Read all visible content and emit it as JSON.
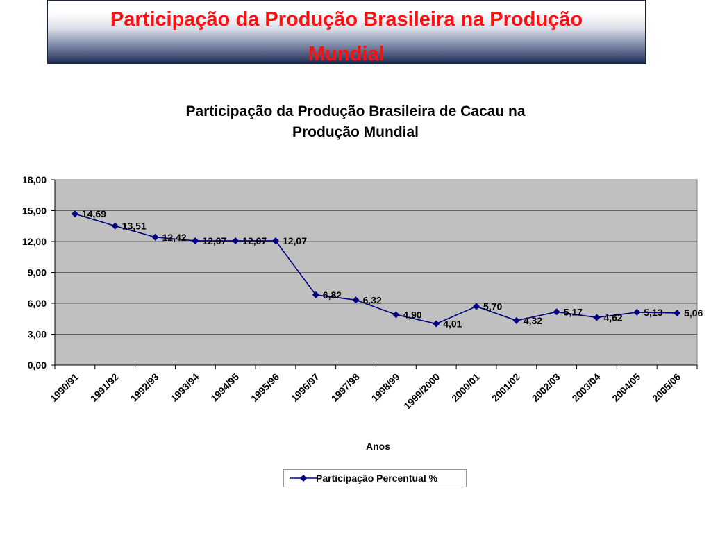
{
  "banner": {
    "title_line1": "Participação da Produção Brasileira na Produção",
    "title_line2": "Mundial"
  },
  "colors": {
    "banner_title": "#ff1010",
    "series_line": "#000080",
    "plot_background": "#c0c0c0"
  },
  "chart_data": {
    "type": "line",
    "title_line1": "Participação da Produção Brasileira de Cacau na",
    "title_line2": "Produção Mundial",
    "xlabel": "Anos",
    "ylabel": "",
    "ylim": [
      0,
      18
    ],
    "yticks": [
      "0,00",
      "3,00",
      "6,00",
      "9,00",
      "12,00",
      "15,00",
      "18,00"
    ],
    "grid": true,
    "legend_position": "bottom",
    "categories": [
      "1990/91",
      "1991/92",
      "1992/93",
      "1993/94",
      "1994/95",
      "1995/96",
      "1996/97",
      "1997/98",
      "1998/99",
      "1999/2000",
      "2000/01",
      "2001/02",
      "2002/03",
      "2003/04",
      "2004/05",
      "2005/06"
    ],
    "series": [
      {
        "name": "Participação Percentual %",
        "values": [
          14.69,
          13.51,
          12.42,
          12.07,
          12.07,
          12.07,
          6.82,
          6.32,
          4.9,
          4.01,
          5.7,
          4.32,
          5.17,
          4.62,
          5.13,
          5.06
        ],
        "labels": [
          "14,69",
          "13,51",
          "12,42",
          "12,07",
          "12,07",
          "12,07",
          "6,82",
          "6,32",
          "4,90",
          "4,01",
          "5,70",
          "4,32",
          "5,17",
          "4,62",
          "5,13",
          "5,06"
        ]
      }
    ]
  }
}
